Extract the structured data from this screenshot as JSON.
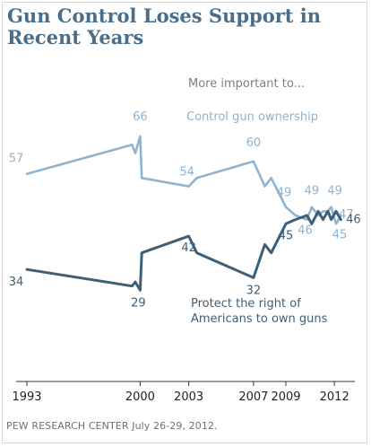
{
  "title": "Gun Control Loses Support in Recent Years",
  "source": "PEW RESEARCH CENTER July 26-29, 2012.",
  "chart_data": {
    "type": "line",
    "title": "Gun Control Loses Support in Recent Years",
    "legend_header": "More important to...",
    "xlim": [
      1993,
      2012.6
    ],
    "ylim": [
      20,
      74
    ],
    "grid": false,
    "x_tick_labels": [
      {
        "x": 1993,
        "label": "1993"
      },
      {
        "x": 2000,
        "label": "2000"
      },
      {
        "x": 2003,
        "label": "2003"
      },
      {
        "x": 2007,
        "label": "2007"
      },
      {
        "x": 2009,
        "label": "2009"
      },
      {
        "x": 2012,
        "label": "2012"
      }
    ],
    "colors": {
      "control": "#8fb3d1",
      "protect": "#3f5f77",
      "axis": "#333333",
      "header": "#7f7f7f",
      "title": "#4a6e8a"
    },
    "series": [
      {
        "name": "Control gun ownership",
        "key": "control",
        "points": [
          {
            "x": 1993,
            "y": 57,
            "label": "57"
          },
          {
            "x": 1999.5,
            "y": 64
          },
          {
            "x": 1999.7,
            "y": 62
          },
          {
            "x": 2000,
            "y": 66,
            "label": "66"
          },
          {
            "x": 2000.1,
            "y": 56
          },
          {
            "x": 2003,
            "y": 54,
            "label": "54"
          },
          {
            "x": 2003.5,
            "y": 56
          },
          {
            "x": 2007,
            "y": 60,
            "label": "60"
          },
          {
            "x": 2007.7,
            "y": 54
          },
          {
            "x": 2008.1,
            "y": 56
          },
          {
            "x": 2009,
            "y": 49,
            "label": "49"
          },
          {
            "x": 2009.6,
            "y": 47
          },
          {
            "x": 2010.3,
            "y": 46,
            "label": "46"
          },
          {
            "x": 2010.6,
            "y": 49,
            "label": "49"
          },
          {
            "x": 2011,
            "y": 47
          },
          {
            "x": 2011.3,
            "y": 48
          },
          {
            "x": 2011.6,
            "y": 48
          },
          {
            "x": 2011.8,
            "y": 49,
            "label": "49"
          },
          {
            "x": 2012.1,
            "y": 45,
            "label": "45"
          },
          {
            "x": 2012.4,
            "y": 47,
            "label": "47"
          }
        ]
      },
      {
        "name": "Protect the right of Americans to own guns",
        "key": "protect",
        "points": [
          {
            "x": 1993,
            "y": 34,
            "label": "34"
          },
          {
            "x": 1999.5,
            "y": 30
          },
          {
            "x": 1999.7,
            "y": 31
          },
          {
            "x": 2000,
            "y": 29,
            "label": "29"
          },
          {
            "x": 2000.1,
            "y": 38
          },
          {
            "x": 2003,
            "y": 42,
            "label": "42"
          },
          {
            "x": 2003.5,
            "y": 38
          },
          {
            "x": 2007,
            "y": 32,
            "label": "32"
          },
          {
            "x": 2007.7,
            "y": 40
          },
          {
            "x": 2008.1,
            "y": 38
          },
          {
            "x": 2009,
            "y": 45,
            "label": "45"
          },
          {
            "x": 2009.6,
            "y": 46
          },
          {
            "x": 2010.3,
            "y": 47
          },
          {
            "x": 2010.6,
            "y": 45
          },
          {
            "x": 2011,
            "y": 48
          },
          {
            "x": 2011.3,
            "y": 46
          },
          {
            "x": 2011.6,
            "y": 48
          },
          {
            "x": 2011.8,
            "y": 46
          },
          {
            "x": 2012.1,
            "y": 48
          },
          {
            "x": 2012.4,
            "y": 46,
            "label": "46"
          }
        ]
      }
    ]
  }
}
